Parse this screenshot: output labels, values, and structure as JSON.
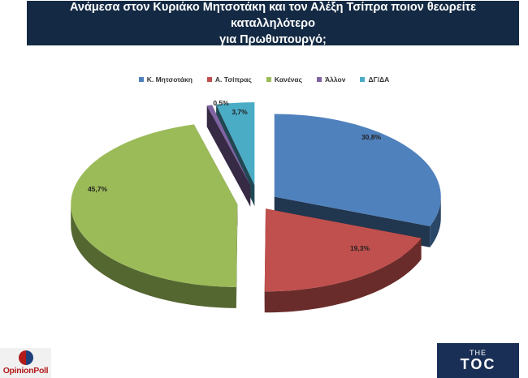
{
  "header": {
    "title": "Ανάμεσα στον Κυριάκο Μητσοτάκη και τον Αλέξη Τσίπρα ποιον θεωρείτε καταλληλότερο\nγια Πρωθυπουργό;"
  },
  "chart_data": {
    "type": "pie",
    "title": "Ανάμεσα στον Κυριάκο Μητσοτάκη και τον Αλέξη Τσίπρα ποιον θεωρείτε καταλληλότερο για Πρωθυπουργό;",
    "style": "3d-exploded",
    "legend_position": "top",
    "categories": [
      "Κ. Μητσοτάκη",
      "Α. Τσίπρας",
      "Κανένας",
      "Άλλον",
      "ΔΓ/ΔΑ"
    ],
    "values": [
      30.8,
      19.3,
      45.7,
      0.5,
      3.7
    ],
    "labels": [
      "30,8%",
      "19,3%",
      "45,7%",
      "0,5%",
      "3,7%"
    ],
    "colors": [
      "#4f81bd",
      "#c0504d",
      "#9bbb59",
      "#8064a2",
      "#4bacc6"
    ]
  },
  "logos": {
    "left": "OpinionPoll",
    "right_small": "THE",
    "right_big": "TOC"
  }
}
